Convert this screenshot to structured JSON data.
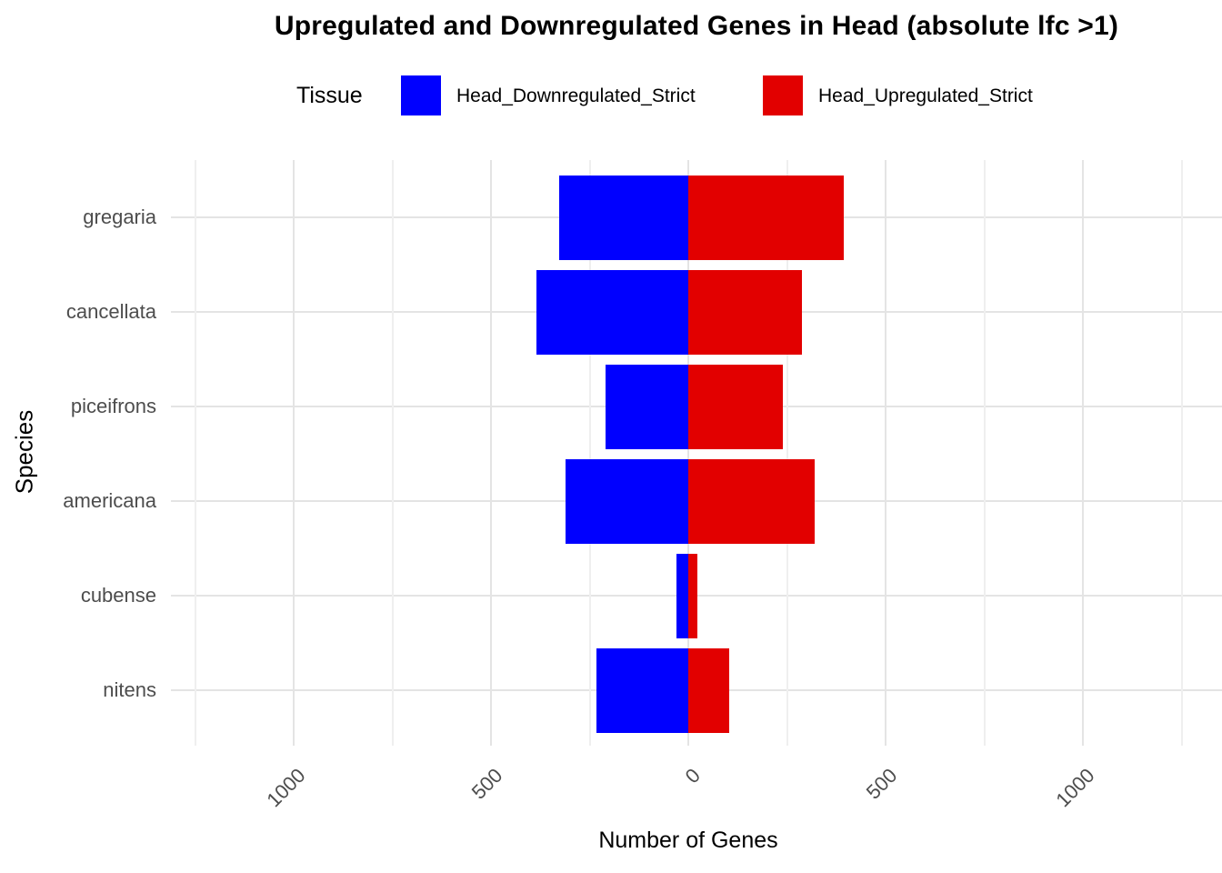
{
  "title": "Upregulated and Downregulated Genes in Head (absolute lfc >1)",
  "legend": {
    "title": "Tissue",
    "items": [
      {
        "label": "Head_Downregulated_Strict",
        "color": "#0000ff"
      },
      {
        "label": "Head_Upregulated_Strict",
        "color": "#e20000"
      }
    ]
  },
  "chart_data": {
    "type": "bar",
    "orientation": "horizontal-diverging",
    "title": "Upregulated and Downregulated Genes in Head (absolute lfc >1)",
    "xlabel": "Number of Genes",
    "ylabel": "Species",
    "categories": [
      "gregaria",
      "cancellata",
      "piceifrons",
      "americana",
      "cubense",
      "nitens"
    ],
    "series": [
      {
        "name": "Head_Downregulated_Strict",
        "direction": "left",
        "color": "#0000ff",
        "values": [
          327,
          385,
          210,
          311,
          30,
          233
        ]
      },
      {
        "name": "Head_Upregulated_Strict",
        "direction": "right",
        "color": "#e20000",
        "values": [
          394,
          288,
          240,
          320,
          22,
          103
        ]
      }
    ],
    "x_ticks": [
      -1000,
      -500,
      0,
      500,
      1000
    ],
    "x_tick_labels": [
      "1000",
      "500",
      "0",
      "500",
      "1000"
    ],
    "xlim": [
      -1310,
      1335
    ],
    "minor_step": 250,
    "grid": "major+minor",
    "legend_position": "top"
  }
}
